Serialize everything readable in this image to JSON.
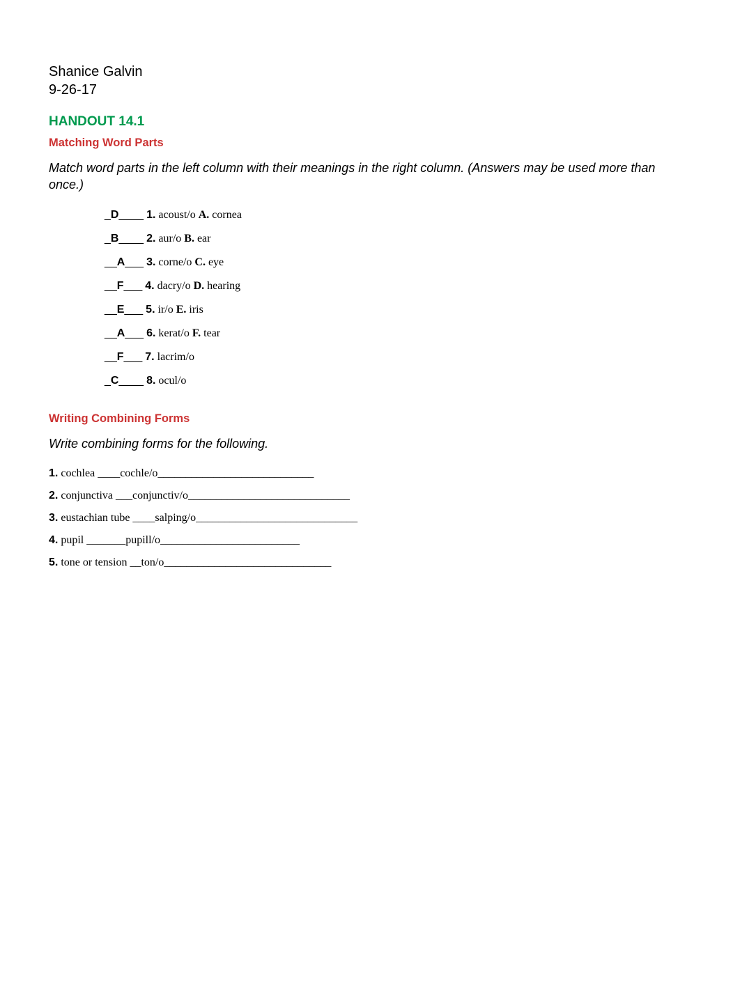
{
  "colors": {
    "text": "#000000",
    "accent_green": "#009a4e",
    "heading_red": "#cc3333",
    "background": "#ffffff"
  },
  "student": {
    "name": "Shanice Galvin",
    "date": "9-26-17"
  },
  "handout": {
    "title": "HANDOUT 14.1"
  },
  "matching": {
    "heading": "Matching Word Parts",
    "instructions": "Match word parts in the left column with their meanings in the right column. (Answers may be used more than once.)",
    "rows": [
      {
        "prefix": "_",
        "answer": "D",
        "suffix": "____",
        "num": "1.",
        "term": "acoust/o",
        "opt_letter": "A.",
        "opt_text": "cornea"
      },
      {
        "prefix": "_",
        "answer": "B",
        "suffix": "____",
        "num": "2.",
        "term": "aur/o",
        "opt_letter": "B.",
        "opt_text": "ear"
      },
      {
        "prefix": "__",
        "answer": "A",
        "suffix": "___",
        "num": "3.",
        "term": "corne/o",
        "opt_letter": "C.",
        "opt_text": "eye"
      },
      {
        "prefix": "__",
        "answer": "F",
        "suffix": "___",
        "num": "4.",
        "term": "dacry/o",
        "opt_letter": "D.",
        "opt_text": "hearing"
      },
      {
        "prefix": "__",
        "answer": "E",
        "suffix": "___",
        "num": "5.",
        "term": "ir/o",
        "opt_letter": "E.",
        "opt_text": "iris"
      },
      {
        "prefix": "__",
        "answer": "A",
        "suffix": "___",
        "num": "6.",
        "term": "kerat/o",
        "opt_letter": "F.",
        "opt_text": "tear"
      },
      {
        "prefix": "__",
        "answer": "F",
        "suffix": "___",
        "num": "7.",
        "term": "lacrim/o",
        "opt_letter": "",
        "opt_text": ""
      },
      {
        "prefix": "_",
        "answer": "C",
        "suffix": "____",
        "num": "8.",
        "term": "ocul/o",
        "opt_letter": "",
        "opt_text": ""
      }
    ]
  },
  "writing": {
    "heading": "Writing Combining Forms",
    "instructions": "Write combining forms for the following.",
    "rows": [
      {
        "num": "1.",
        "text": "cochlea ____cochle/o____________________________"
      },
      {
        "num": "2.",
        "text": "conjunctiva ___conjunctiv/o_____________________________"
      },
      {
        "num": "3.",
        "text": "eustachian tube ____salping/o_____________________________"
      },
      {
        "num": "4.",
        "text": "pupil _______pupill/o_________________________"
      },
      {
        "num": "5.",
        "text": "tone or tension  __ton/o______________________________"
      }
    ]
  }
}
